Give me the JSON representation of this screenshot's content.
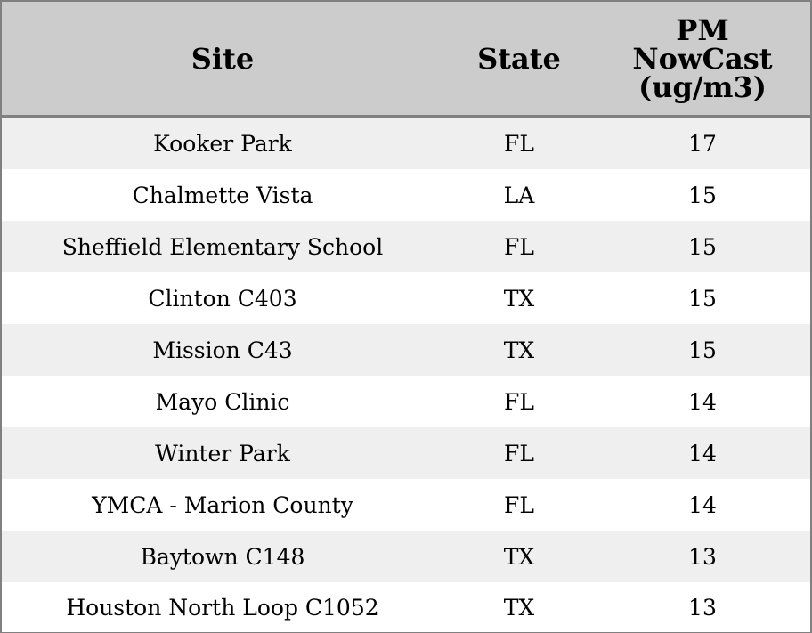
{
  "chart_data": {
    "type": "table",
    "columns": [
      "Site",
      "State",
      "PM NowCast (ug/m3)"
    ],
    "header_lines": {
      "site": "Site",
      "state": "State",
      "pm": [
        "PM",
        "NowCast",
        "(ug/m3)"
      ]
    },
    "rows": [
      {
        "site": "Kooker Park",
        "state": "FL",
        "pm": "17"
      },
      {
        "site": "Chalmette Vista",
        "state": "LA",
        "pm": "15"
      },
      {
        "site": "Sheffield Elementary School",
        "state": "FL",
        "pm": "15"
      },
      {
        "site": "Clinton C403",
        "state": "TX",
        "pm": "15"
      },
      {
        "site": "Mission C43",
        "state": "TX",
        "pm": "15"
      },
      {
        "site": "Mayo Clinic",
        "state": "FL",
        "pm": "14"
      },
      {
        "site": "Winter Park",
        "state": "FL",
        "pm": "14"
      },
      {
        "site": "YMCA - Marion County",
        "state": "FL",
        "pm": "14"
      },
      {
        "site": "Baytown C148",
        "state": "TX",
        "pm": "13"
      },
      {
        "site": "Houston North Loop C1052",
        "state": "TX",
        "pm": "13"
      }
    ]
  },
  "colors": {
    "header_background": "#cccccc",
    "row_stripe": "#efefef",
    "row_plain": "#ffffff",
    "border": "#808080"
  }
}
